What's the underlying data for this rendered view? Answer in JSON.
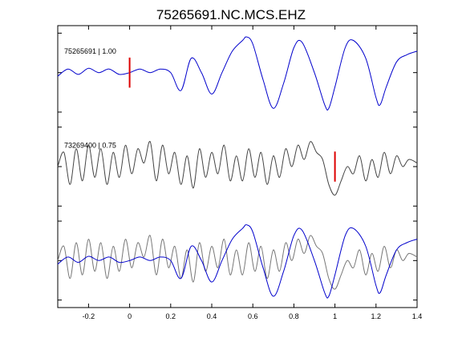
{
  "chart_data": {
    "type": "line",
    "title": "75265691.NC.MCS.EHZ",
    "xlabel": "",
    "ylabel": "",
    "xlim": [
      -0.35,
      1.4
    ],
    "xticks": [
      -0.2,
      0,
      0.2,
      0.4,
      0.6,
      0.8,
      1,
      1.2,
      1.4
    ],
    "xtick_labels": [
      "-0.2",
      "0",
      "0.2",
      "0.4",
      "0.6",
      "0.8",
      "1",
      "1.2",
      "1.4"
    ],
    "grid": false,
    "legend": "none",
    "colors": {
      "blue": "#0000cc",
      "gray": "#444444",
      "overlay_gray": "#777777",
      "pick": "#dd0000"
    },
    "traces": [
      {
        "label": "75265691 | 1.00",
        "color": "#0000cc",
        "pick_time": 0.0,
        "x": [
          -0.35,
          -0.3,
          -0.25,
          -0.2,
          -0.15,
          -0.1,
          -0.05,
          0,
          0.05,
          0.1,
          0.15,
          0.2,
          0.25,
          0.3,
          0.35,
          0.4,
          0.45,
          0.5,
          0.55,
          0.57,
          0.6,
          0.65,
          0.7,
          0.75,
          0.8,
          0.84,
          0.9,
          0.95,
          0.97,
          1.0,
          1.05,
          1.09,
          1.15,
          1.2,
          1.22,
          1.25,
          1.3,
          1.35,
          1.4
        ],
        "y": [
          -0.1,
          0.1,
          -0.05,
          0.12,
          0.0,
          0.1,
          -0.05,
          0.0,
          0.1,
          0.0,
          0.1,
          0.0,
          -0.5,
          0.4,
          0.0,
          -0.6,
          0.0,
          0.6,
          0.9,
          1.0,
          0.8,
          -0.2,
          -1.0,
          -0.3,
          0.7,
          0.85,
          0.0,
          -0.9,
          -1.0,
          -0.4,
          0.7,
          0.9,
          0.4,
          -0.7,
          -0.9,
          -0.4,
          0.3,
          0.5,
          0.6
        ]
      },
      {
        "label": "73269400 | 0.75",
        "color": "#444444",
        "pick_time": 1.0,
        "x": [
          -0.35,
          -0.32,
          -0.29,
          -0.26,
          -0.23,
          -0.2,
          -0.17,
          -0.14,
          -0.11,
          -0.08,
          -0.05,
          -0.02,
          0.01,
          0.04,
          0.07,
          0.1,
          0.13,
          0.16,
          0.19,
          0.22,
          0.25,
          0.28,
          0.31,
          0.34,
          0.37,
          0.4,
          0.43,
          0.46,
          0.49,
          0.52,
          0.55,
          0.58,
          0.61,
          0.64,
          0.67,
          0.7,
          0.73,
          0.76,
          0.79,
          0.82,
          0.85,
          0.88,
          0.91,
          0.94,
          0.97,
          1.0,
          1.03,
          1.06,
          1.09,
          1.12,
          1.15,
          1.18,
          1.21,
          1.24,
          1.27,
          1.3,
          1.33,
          1.36,
          1.4
        ],
        "y": [
          0.0,
          0.4,
          -0.5,
          0.5,
          -0.4,
          0.6,
          -0.3,
          0.5,
          -0.5,
          0.4,
          -0.3,
          0.6,
          -0.2,
          0.5,
          0.1,
          0.7,
          -0.4,
          0.6,
          -0.2,
          0.4,
          -0.5,
          0.3,
          -0.6,
          0.5,
          -0.3,
          0.4,
          -0.2,
          0.6,
          -0.4,
          0.3,
          -0.4,
          0.5,
          -0.3,
          0.4,
          -0.5,
          0.3,
          -0.3,
          0.5,
          0.0,
          0.6,
          0.2,
          0.7,
          0.4,
          0.2,
          -0.5,
          -0.8,
          -0.4,
          0.0,
          -0.2,
          0.3,
          -0.4,
          0.2,
          -0.3,
          0.4,
          -0.2,
          0.3,
          0.0,
          0.2,
          0.1
        ]
      },
      {
        "label": "",
        "overlay": true,
        "series": [
          {
            "color": "#777777",
            "x": [
              -0.35,
              -0.32,
              -0.29,
              -0.26,
              -0.23,
              -0.2,
              -0.17,
              -0.14,
              -0.11,
              -0.08,
              -0.05,
              -0.02,
              0.01,
              0.04,
              0.07,
              0.1,
              0.13,
              0.16,
              0.19,
              0.22,
              0.25,
              0.28,
              0.31,
              0.34,
              0.37,
              0.4,
              0.43,
              0.46,
              0.49,
              0.52,
              0.55,
              0.58,
              0.61,
              0.64,
              0.67,
              0.7,
              0.73,
              0.76,
              0.79,
              0.82,
              0.85,
              0.88,
              0.91,
              0.94,
              0.97,
              1.0,
              1.03,
              1.06,
              1.09,
              1.12,
              1.15,
              1.18,
              1.21,
              1.24,
              1.27,
              1.3,
              1.33,
              1.36,
              1.4
            ],
            "y": [
              0.0,
              0.4,
              -0.5,
              0.5,
              -0.4,
              0.6,
              -0.3,
              0.5,
              -0.5,
              0.4,
              -0.3,
              0.6,
              -0.2,
              0.5,
              0.1,
              0.7,
              -0.4,
              0.6,
              -0.2,
              0.4,
              -0.5,
              0.3,
              -0.6,
              0.5,
              -0.3,
              0.4,
              -0.2,
              0.6,
              -0.4,
              0.3,
              -0.4,
              0.5,
              -0.3,
              0.4,
              -0.5,
              0.3,
              -0.3,
              0.5,
              0.0,
              0.6,
              0.2,
              0.7,
              0.4,
              0.2,
              -0.5,
              -0.8,
              -0.4,
              0.0,
              -0.2,
              0.3,
              -0.4,
              0.2,
              -0.3,
              0.4,
              -0.2,
              0.3,
              0.0,
              0.2,
              0.1
            ]
          },
          {
            "color": "#0000cc",
            "x": [
              -0.35,
              -0.3,
              -0.25,
              -0.2,
              -0.15,
              -0.1,
              -0.05,
              0,
              0.05,
              0.1,
              0.15,
              0.2,
              0.25,
              0.3,
              0.35,
              0.4,
              0.45,
              0.5,
              0.55,
              0.57,
              0.6,
              0.65,
              0.7,
              0.75,
              0.8,
              0.84,
              0.9,
              0.95,
              0.97,
              1.0,
              1.05,
              1.09,
              1.15,
              1.2,
              1.22,
              1.25,
              1.3,
              1.35,
              1.4
            ],
            "y": [
              -0.1,
              0.1,
              -0.05,
              0.12,
              0.0,
              0.1,
              -0.05,
              0.0,
              0.1,
              0.0,
              0.1,
              0.0,
              -0.5,
              0.4,
              0.0,
              -0.6,
              0.0,
              0.6,
              0.9,
              1.0,
              0.8,
              -0.2,
              -1.0,
              -0.3,
              0.7,
              0.85,
              0.0,
              -0.9,
              -1.0,
              -0.4,
              0.7,
              0.9,
              0.4,
              -0.7,
              -0.9,
              -0.4,
              0.3,
              0.5,
              0.6
            ]
          }
        ]
      }
    ]
  }
}
